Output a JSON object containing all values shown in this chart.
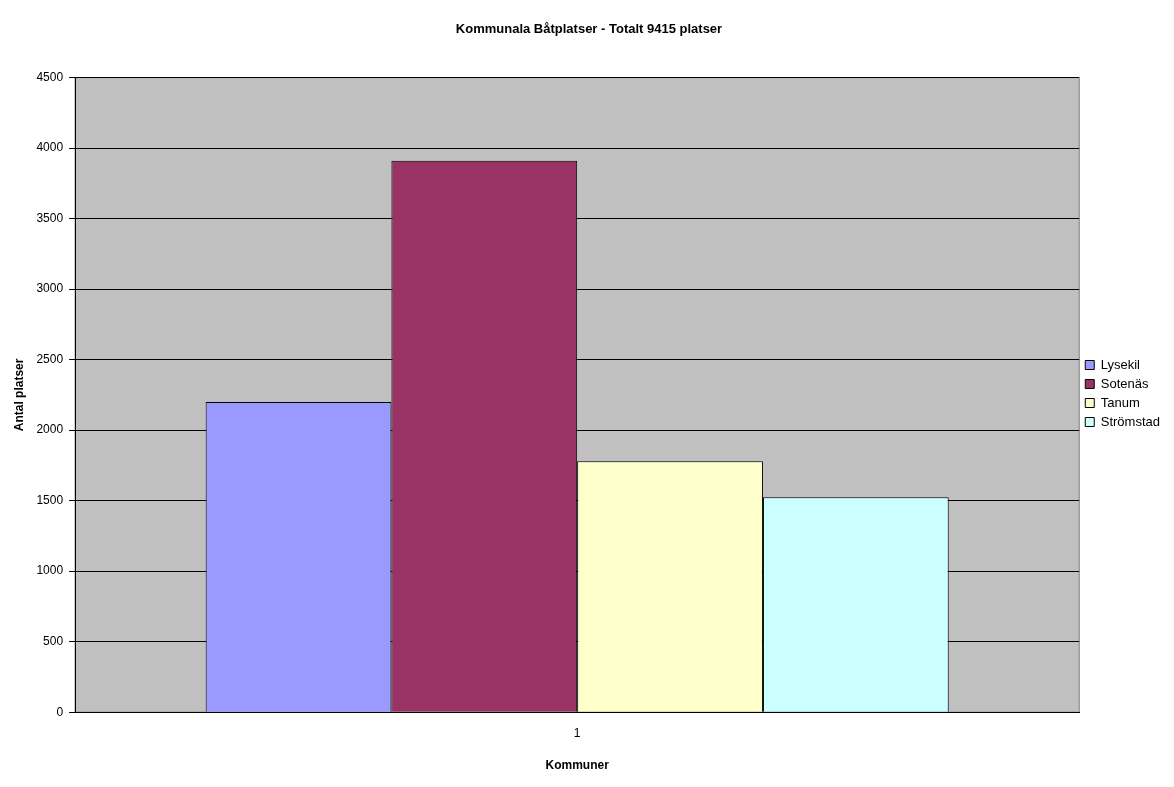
{
  "chart_data": {
    "type": "bar",
    "title": "Kommunala Båtplatser - Totalt 9415 platser",
    "xlabel": "Kommuner",
    "ylabel": "Antal platser",
    "categories": [
      "1"
    ],
    "series": [
      {
        "name": "Lysekil",
        "color": "#9999ff",
        "values": [
          2200
        ]
      },
      {
        "name": "Sotenäs",
        "color": "#993366",
        "values": [
          3910
        ]
      },
      {
        "name": "Tanum",
        "color": "#ffffcc",
        "values": [
          1780
        ]
      },
      {
        "name": "Strömstad",
        "color": "#ccffff",
        "values": [
          1525
        ]
      }
    ],
    "ylim": [
      0,
      4500
    ],
    "yticks": [
      0,
      500,
      1000,
      1500,
      2000,
      2500,
      3000,
      3500,
      4000,
      4500
    ],
    "grid": "y",
    "legend": "right"
  }
}
